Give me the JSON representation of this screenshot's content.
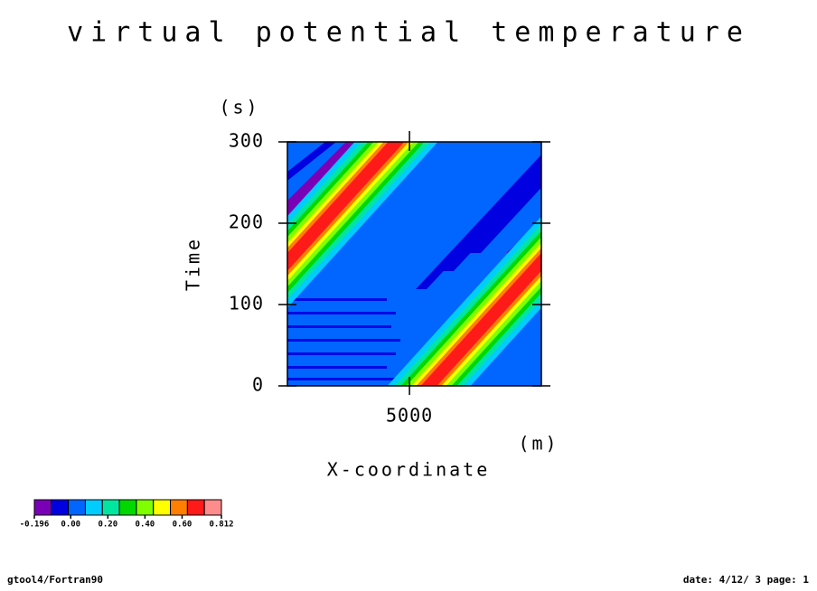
{
  "chart_data": {
    "type": "contour",
    "title": "virtual potential temperature",
    "x_label": "X-coordinate",
    "x_unit": "(m)",
    "y_label": "Time",
    "y_unit": "(s)",
    "xlim": [
      0,
      10400
    ],
    "xticks": [
      5000
    ],
    "ylim": [
      0,
      300
    ],
    "yticks": [
      0,
      100,
      200,
      300
    ],
    "colorbar": {
      "colors": [
        "#7a00b8",
        "#0000e0",
        "#0066ff",
        "#00ccff",
        "#00e6a0",
        "#00d800",
        "#80ff00",
        "#ffff00",
        "#ff8000",
        "#ff1a1a",
        "#ff8c8c"
      ],
      "lim": [
        -0.196,
        0.812
      ],
      "ticks": [
        {
          "value": -0.196,
          "label": "-0.196"
        },
        {
          "value": 0,
          "label": "0.00"
        },
        {
          "value": 0.2,
          "label": "0.20"
        },
        {
          "value": 0.4,
          "label": "0.40"
        },
        {
          "value": 0.6,
          "label": "0.60"
        },
        0.812
      ]
    },
    "footer_left": "gtool4/Fortran90",
    "footer_right": "date: 4/12/ 3 page: 1"
  }
}
